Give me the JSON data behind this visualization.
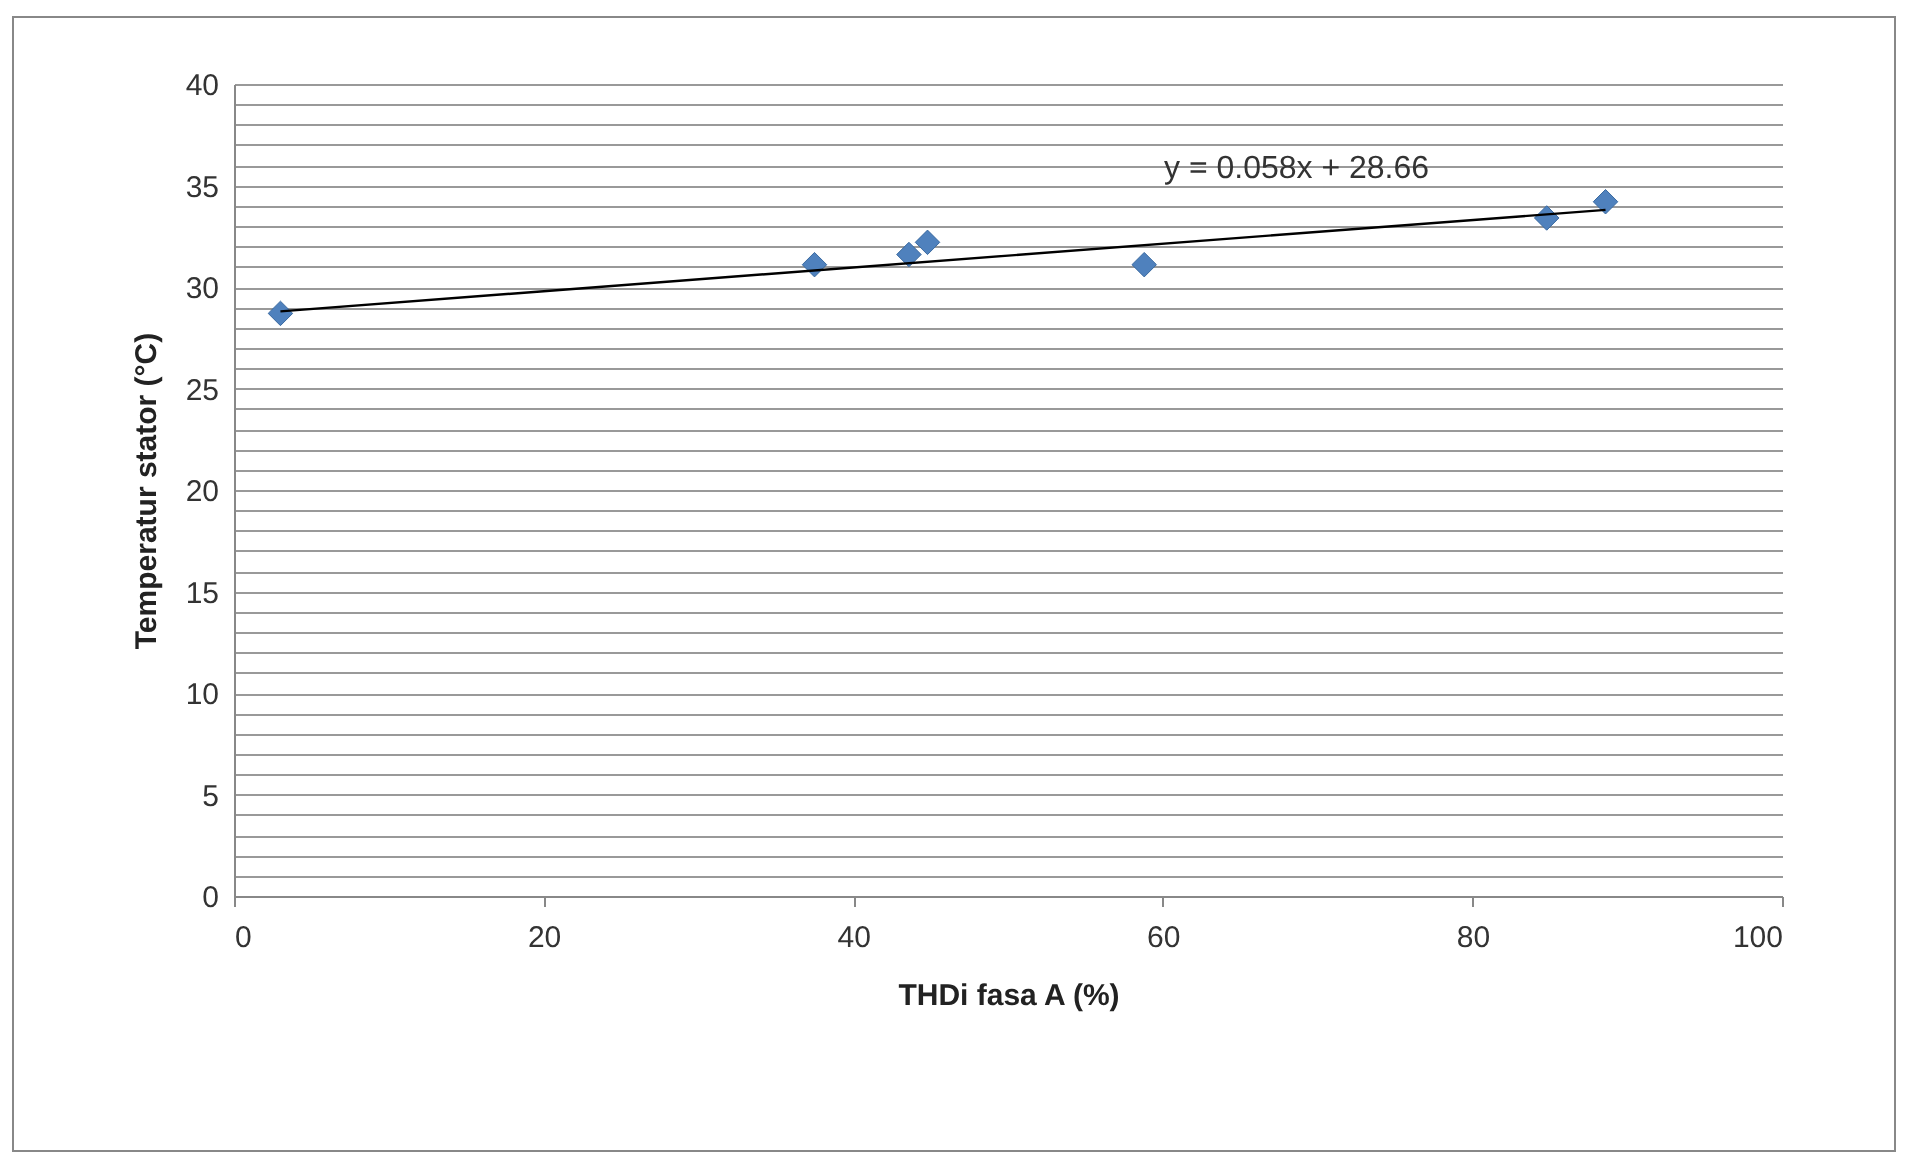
{
  "chart_data": {
    "type": "scatter",
    "xlabel": "THDi fasa A (%)",
    "ylabel": "Temperatur stator (°C)",
    "annotations": [
      "y = 0.058x + 28.66"
    ],
    "x": [
      3,
      37.5,
      43.6,
      44.8,
      58.8,
      84.8,
      88.6
    ],
    "series": [
      {
        "color": "#4f81bd",
        "values": [
          28.7,
          31.1,
          31.6,
          32.2,
          31.1,
          33.4,
          34.2
        ]
      },
      {
        "type": "line",
        "color": "#000000",
        "x": [
          3,
          88.6
        ],
        "values": [
          28.8,
          33.8
        ],
        "marker": "none"
      }
    ],
    "xlim": [
      0,
      100
    ],
    "xticks": [
      0,
      20,
      40,
      60,
      80,
      100
    ],
    "ylim": [
      0,
      40
    ],
    "yticks": [
      0,
      {
        "value": 1,
        "label": null
      },
      {
        "value": 2,
        "label": null
      },
      {
        "value": 3,
        "label": null
      },
      {
        "value": 4,
        "label": null
      },
      5,
      {
        "value": 6,
        "label": null
      },
      {
        "value": 7,
        "label": null
      },
      {
        "value": 8,
        "label": null
      },
      {
        "value": 9,
        "label": null
      },
      10,
      {
        "value": 11,
        "label": null
      },
      {
        "value": 12,
        "label": null
      },
      {
        "value": 13,
        "label": null
      },
      {
        "value": 14,
        "label": null
      },
      15,
      {
        "value": 16,
        "label": null
      },
      {
        "value": 17,
        "label": null
      },
      {
        "value": 18,
        "label": null
      },
      {
        "value": 19,
        "label": null
      },
      20,
      {
        "value": 21,
        "label": null
      },
      {
        "value": 22,
        "label": null
      },
      {
        "value": 23,
        "label": null
      },
      {
        "value": 24,
        "label": null
      },
      25,
      {
        "value": 26,
        "label": null
      },
      {
        "value": 27,
        "label": null
      },
      {
        "value": 28,
        "label": null
      },
      {
        "value": 29,
        "label": null
      },
      30,
      {
        "value": 31,
        "label": null
      },
      {
        "value": 32,
        "label": null
      },
      {
        "value": 33,
        "label": null
      },
      {
        "value": 34,
        "label": null
      },
      35,
      {
        "value": 36,
        "label": null
      },
      {
        "value": 37,
        "label": null
      },
      {
        "value": 38,
        "label": null
      },
      {
        "value": 39,
        "label": null
      },
      40
    ],
    "grid": "y",
    "marker": "diamond"
  }
}
